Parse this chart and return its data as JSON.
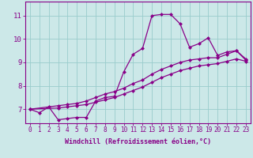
{
  "xlabel": "Windchill (Refroidissement éolien,°C)",
  "bg_color": "#cce8e8",
  "line_color": "#880088",
  "grid_color": "#99cccc",
  "xlim": [
    -0.5,
    23.5
  ],
  "ylim": [
    6.4,
    11.6
  ],
  "xticks": [
    0,
    1,
    2,
    3,
    4,
    5,
    6,
    7,
    8,
    9,
    10,
    11,
    12,
    13,
    14,
    15,
    16,
    17,
    18,
    19,
    20,
    21,
    22,
    23
  ],
  "yticks": [
    7,
    8,
    9,
    10,
    11
  ],
  "line1_x": [
    0,
    1,
    2,
    3,
    4,
    5,
    6,
    7,
    8,
    9,
    10,
    11,
    12,
    13,
    14,
    15,
    16,
    17,
    18,
    19,
    20,
    21,
    22,
    23
  ],
  "line1_y": [
    7.0,
    6.85,
    7.1,
    6.55,
    6.6,
    6.65,
    6.65,
    7.35,
    7.5,
    7.55,
    8.6,
    9.35,
    9.6,
    11.0,
    11.05,
    11.05,
    10.65,
    9.65,
    9.8,
    10.05,
    9.3,
    9.45,
    9.5,
    9.1
  ],
  "line2_x": [
    0,
    3,
    4,
    5,
    6,
    7,
    8,
    9,
    10,
    11,
    12,
    13,
    14,
    15,
    16,
    17,
    18,
    19,
    20,
    21,
    22,
    23
  ],
  "line2_y": [
    7.0,
    7.15,
    7.2,
    7.25,
    7.35,
    7.5,
    7.65,
    7.75,
    7.9,
    8.1,
    8.25,
    8.5,
    8.7,
    8.85,
    9.0,
    9.1,
    9.15,
    9.2,
    9.2,
    9.35,
    9.5,
    9.15
  ],
  "line3_x": [
    0,
    3,
    4,
    5,
    6,
    7,
    8,
    9,
    10,
    11,
    12,
    13,
    14,
    15,
    16,
    17,
    18,
    19,
    20,
    21,
    22,
    23
  ],
  "line3_y": [
    7.0,
    7.05,
    7.1,
    7.15,
    7.2,
    7.3,
    7.4,
    7.5,
    7.65,
    7.8,
    7.95,
    8.15,
    8.35,
    8.5,
    8.65,
    8.75,
    8.85,
    8.9,
    8.95,
    9.05,
    9.15,
    9.05
  ],
  "markersize": 2.5,
  "linewidth": 0.9,
  "tick_fontsize": 5.5,
  "label_fontsize": 6.0
}
